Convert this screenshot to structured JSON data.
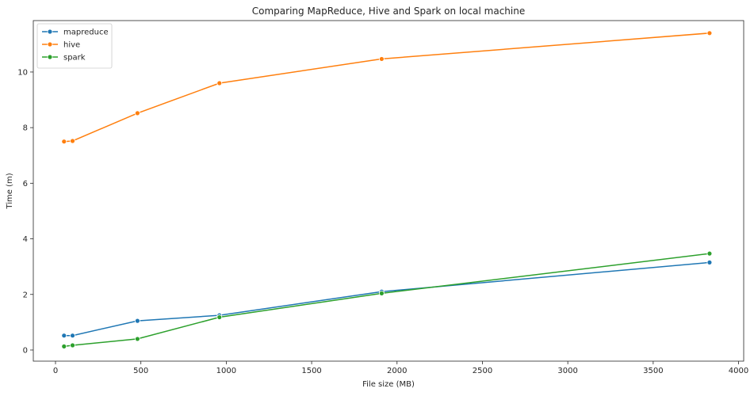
{
  "chart_data": {
    "type": "line",
    "title": "Comparing MapReduce, Hive and Spark on local machine",
    "xlabel": "File size (MB)",
    "ylabel": "Time (m)",
    "xlim": [
      -130,
      4030
    ],
    "ylim": [
      -0.4,
      11.85
    ],
    "xticks": [
      0,
      500,
      1000,
      1500,
      2000,
      2500,
      3000,
      3500,
      4000
    ],
    "yticks": [
      0,
      2,
      4,
      6,
      8,
      10
    ],
    "grid": false,
    "legend_position": "top-left",
    "marker": "circle",
    "series": [
      {
        "name": "mapreduce",
        "color": "#1f77b4",
        "x": [
          50,
          100,
          480,
          960,
          1910,
          3830
        ],
        "y": [
          0.52,
          0.52,
          1.05,
          1.25,
          2.1,
          3.15
        ]
      },
      {
        "name": "hive",
        "color": "#ff7f0e",
        "x": [
          50,
          100,
          480,
          960,
          1910,
          3830
        ],
        "y": [
          7.5,
          7.52,
          8.52,
          9.6,
          10.47,
          11.4
        ]
      },
      {
        "name": "spark",
        "color": "#2ca02c",
        "x": [
          50,
          100,
          480,
          960,
          1910,
          3830
        ],
        "y": [
          0.13,
          0.17,
          0.4,
          1.18,
          2.04,
          3.47
        ]
      }
    ]
  }
}
